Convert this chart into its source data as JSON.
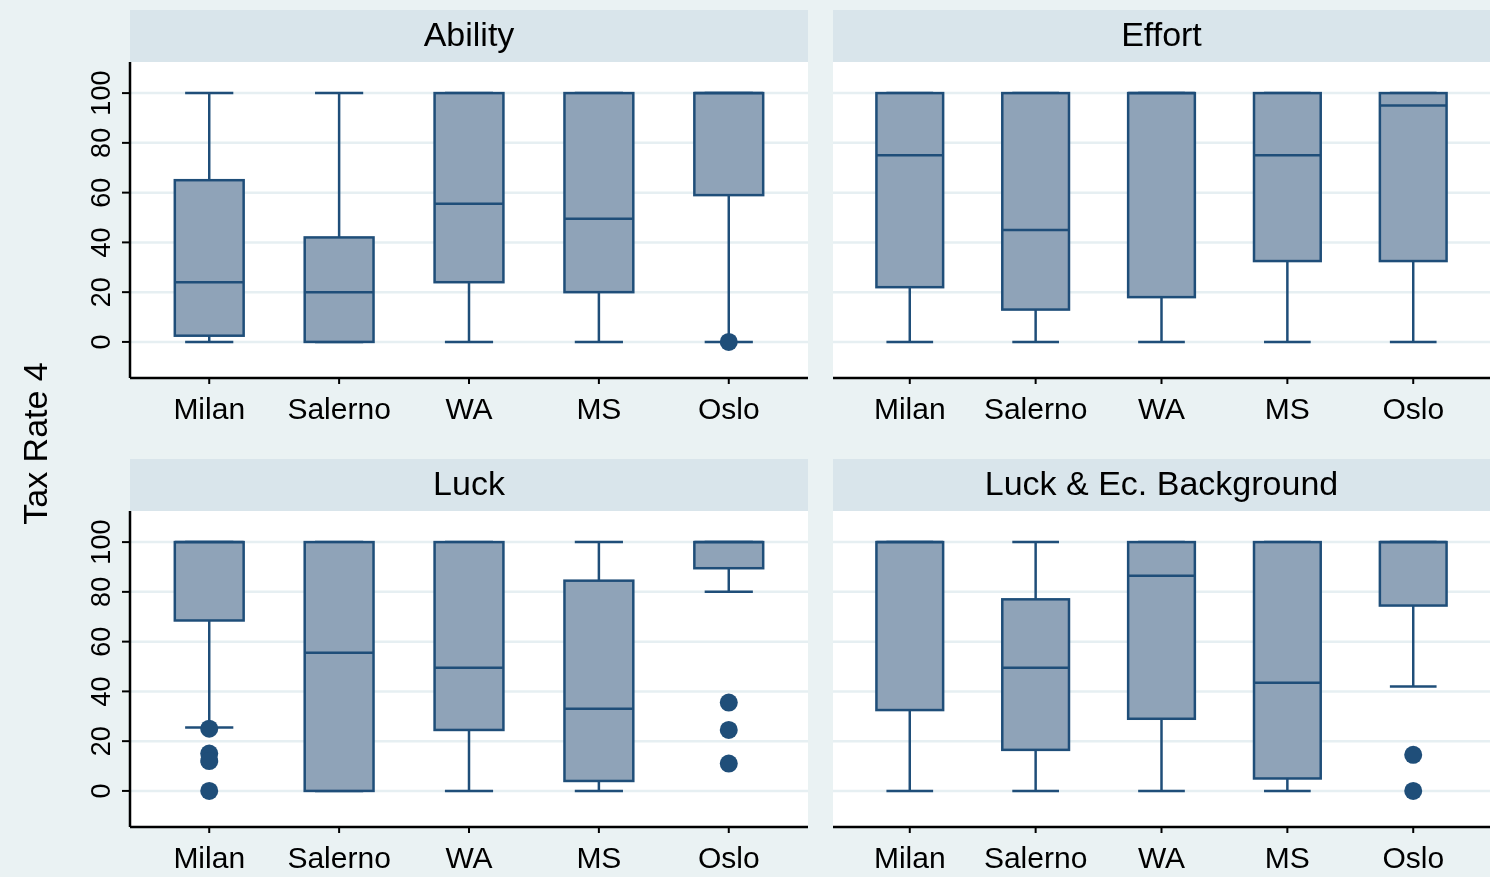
{
  "chart_data": [
    {
      "type": "box",
      "title": "Ability",
      "ylabel": "Tax Rate 4",
      "categories": [
        "Milan",
        "Salerno",
        "WA",
        "MS",
        "Oslo"
      ],
      "ylim": [
        -14.5,
        112.5
      ],
      "yticks": [
        0,
        20,
        40,
        60,
        80,
        100
      ],
      "grid": "y",
      "series": [
        {
          "color": "#8fa3b8",
          "boxes": [
            {
              "low": 0,
              "q1": 2.5,
              "median": 24,
              "q3": 65,
              "high": 100
            },
            {
              "low": 0,
              "q1": 0,
              "median": 20,
              "q3": 42,
              "high": 100
            },
            {
              "low": 0,
              "q1": 24,
              "median": 55.5,
              "q3": 100,
              "high": 100
            },
            {
              "low": 0,
              "q1": 20,
              "median": 49.5,
              "q3": 100,
              "high": 100
            },
            {
              "low": 0,
              "q1": 59,
              "median": 100,
              "q3": 100,
              "high": 100,
              "outliers": [
                0
              ]
            }
          ]
        }
      ]
    },
    {
      "type": "box",
      "title": "Effort",
      "categories": [
        "Milan",
        "Salerno",
        "WA",
        "MS",
        "Oslo"
      ],
      "ylim": [
        -14.5,
        112.5
      ],
      "yticks": [
        0,
        20,
        40,
        60,
        80,
        100
      ],
      "grid": "y",
      "tick_labels": "x",
      "series": [
        {
          "color": "#8fa3b8",
          "boxes": [
            {
              "low": 0,
              "q1": 22,
              "median": 75,
              "q3": 100,
              "high": 100
            },
            {
              "low": 0,
              "q1": 13,
              "median": 45,
              "q3": 100,
              "high": 100
            },
            {
              "low": 0,
              "q1": 18,
              "median": 100,
              "q3": 100,
              "high": 100
            },
            {
              "low": 0,
              "q1": 32.5,
              "median": 75,
              "q3": 100,
              "high": 100
            },
            {
              "low": 0,
              "q1": 32.5,
              "median": 95,
              "q3": 100,
              "high": 100
            }
          ]
        }
      ]
    },
    {
      "type": "box",
      "title": "Luck",
      "categories": [
        "Milan",
        "Salerno",
        "WA",
        "MS",
        "Oslo"
      ],
      "ylim": [
        -14.5,
        112.5
      ],
      "yticks": [
        0,
        20,
        40,
        60,
        80,
        100
      ],
      "grid": "y",
      "series": [
        {
          "color": "#8fa3b8",
          "boxes": [
            {
              "low": 25.5,
              "q1": 68.5,
              "median": 100,
              "q3": 100,
              "high": 100,
              "outliers": [
                25,
                15,
                12,
                0
              ]
            },
            {
              "low": 0,
              "q1": 0,
              "median": 55.5,
              "q3": 100,
              "high": 100
            },
            {
              "low": 0,
              "q1": 24.5,
              "median": 49.5,
              "q3": 100,
              "high": 100
            },
            {
              "low": 0,
              "q1": 4,
              "median": 33,
              "q3": 84.5,
              "high": 100
            },
            {
              "low": 80,
              "q1": 89.5,
              "median": 100,
              "q3": 100,
              "high": 100,
              "outliers": [
                35.5,
                24.5,
                11
              ]
            }
          ]
        }
      ]
    },
    {
      "type": "box",
      "title": "Luck & Ec. Background",
      "categories": [
        "Milan",
        "Salerno",
        "WA",
        "MS",
        "Oslo"
      ],
      "ylim": [
        -14.5,
        112.5
      ],
      "yticks": [
        0,
        20,
        40,
        60,
        80,
        100
      ],
      "grid": "y",
      "tick_labels": "x",
      "series": [
        {
          "color": "#8fa3b8",
          "boxes": [
            {
              "low": 0,
              "q1": 32.5,
              "median": 100,
              "q3": 100,
              "high": 100
            },
            {
              "low": 0,
              "q1": 16.5,
              "median": 49.5,
              "q3": 77,
              "high": 100
            },
            {
              "low": 0,
              "q1": 29,
              "median": 86.5,
              "q3": 100,
              "high": 100
            },
            {
              "low": 0,
              "q1": 5,
              "median": 43.5,
              "q3": 100,
              "high": 100
            },
            {
              "low": 42,
              "q1": 74.5,
              "median": 100,
              "q3": 100,
              "high": 100,
              "outliers": [
                14.5,
                0
              ]
            }
          ]
        }
      ]
    }
  ]
}
